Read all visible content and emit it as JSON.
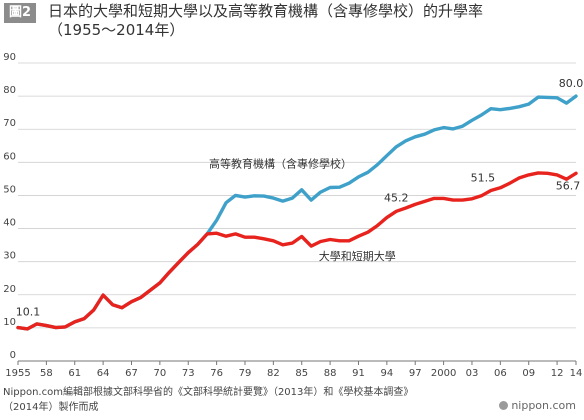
{
  "header": {
    "figure_label": "圖2",
    "title_line1": "日本的大學和短期大學以及高等教育機構（含專修學校）的升學率",
    "title_line2": "（1955～2014年）"
  },
  "footer": {
    "source_line1": "Nippon.com編輯部根據文部科學省的《文部科學統計要覽》（2013年）和《學校基本調查》",
    "source_line2": "（2014年）製作而成",
    "brand": "nippon.com",
    "brand_icon": "nippon-logo-icon"
  },
  "chart_data": {
    "type": "line",
    "title": "日本的大學和短期大學以及高等教育機構（含專修學校）的升學率（1955～2014年）",
    "ylim": [
      0,
      90
    ],
    "yticks": [
      0,
      10,
      20,
      30,
      40,
      50,
      60,
      70,
      80,
      90
    ],
    "xlim": [
      1955,
      2014
    ],
    "xticks": [
      {
        "value": 1955,
        "label": "1955"
      },
      {
        "value": 1958,
        "label": "58"
      },
      {
        "value": 1961,
        "label": "61"
      },
      {
        "value": 1964,
        "label": "64"
      },
      {
        "value": 1967,
        "label": "67"
      },
      {
        "value": 1970,
        "label": "70"
      },
      {
        "value": 1973,
        "label": "73"
      },
      {
        "value": 1976,
        "label": "76"
      },
      {
        "value": 1979,
        "label": "79"
      },
      {
        "value": 1982,
        "label": "82"
      },
      {
        "value": 1985,
        "label": "85"
      },
      {
        "value": 1988,
        "label": "88"
      },
      {
        "value": 1991,
        "label": "91"
      },
      {
        "value": 1994,
        "label": "94"
      },
      {
        "value": 1997,
        "label": "97"
      },
      {
        "value": 2000,
        "label": "2000"
      },
      {
        "value": 2003,
        "label": "03"
      },
      {
        "value": 2006,
        "label": "06"
      },
      {
        "value": 2009,
        "label": "09"
      },
      {
        "value": 2012,
        "label": "12"
      },
      {
        "value": 2014,
        "label": "14"
      }
    ],
    "grid": true,
    "series": [
      {
        "name": "高等教育機構（含專修學校）",
        "color": "#3fa1c9",
        "x": [
          1955,
          1956,
          1957,
          1958,
          1959,
          1960,
          1961,
          1962,
          1963,
          1964,
          1965,
          1966,
          1967,
          1968,
          1969,
          1970,
          1971,
          1972,
          1973,
          1974,
          1975,
          1976,
          1977,
          1978,
          1979,
          1980,
          1981,
          1982,
          1983,
          1984,
          1985,
          1986,
          1987,
          1988,
          1989,
          1990,
          1991,
          1992,
          1993,
          1994,
          1995,
          1996,
          1997,
          1998,
          1999,
          2000,
          2001,
          2002,
          2003,
          2004,
          2005,
          2006,
          2007,
          2008,
          2009,
          2010,
          2011,
          2012,
          2013,
          2014
        ],
        "values": [
          10.1,
          9.7,
          11.2,
          10.7,
          10.1,
          10.3,
          11.8,
          12.8,
          15.4,
          19.9,
          17.0,
          16.1,
          17.9,
          19.2,
          21.4,
          23.6,
          26.8,
          29.8,
          32.7,
          35.2,
          38.4,
          42.5,
          47.8,
          50.0,
          49.5,
          49.9,
          49.8,
          49.2,
          48.3,
          49.2,
          51.7,
          48.6,
          51.0,
          52.4,
          52.5,
          53.7,
          55.6,
          57.0,
          59.3,
          62.0,
          64.7,
          66.5,
          67.7,
          68.5,
          69.8,
          70.5,
          70.1,
          70.9,
          72.7,
          74.3,
          76.2,
          75.9,
          76.3,
          76.8,
          77.6,
          79.7,
          79.6,
          79.5,
          77.9,
          80.0
        ]
      },
      {
        "name": "大學和短期大學",
        "color": "#e8231d",
        "x": [
          1955,
          1956,
          1957,
          1958,
          1959,
          1960,
          1961,
          1962,
          1963,
          1964,
          1965,
          1966,
          1967,
          1968,
          1969,
          1970,
          1971,
          1972,
          1973,
          1974,
          1975,
          1976,
          1977,
          1978,
          1979,
          1980,
          1981,
          1982,
          1983,
          1984,
          1985,
          1986,
          1987,
          1988,
          1989,
          1990,
          1991,
          1992,
          1993,
          1994,
          1995,
          1996,
          1997,
          1998,
          1999,
          2000,
          2001,
          2002,
          2003,
          2004,
          2005,
          2006,
          2007,
          2008,
          2009,
          2010,
          2011,
          2012,
          2013,
          2014
        ],
        "values": [
          10.1,
          9.7,
          11.2,
          10.7,
          10.1,
          10.3,
          11.8,
          12.8,
          15.4,
          19.9,
          17.0,
          16.1,
          17.9,
          19.2,
          21.4,
          23.6,
          26.8,
          29.8,
          32.7,
          35.2,
          38.4,
          38.6,
          37.7,
          38.4,
          37.4,
          37.4,
          36.9,
          36.3,
          35.1,
          35.6,
          37.6,
          34.7,
          36.1,
          36.7,
          36.3,
          36.3,
          37.7,
          38.9,
          40.9,
          43.3,
          45.2,
          46.2,
          47.3,
          48.2,
          49.1,
          49.1,
          48.6,
          48.6,
          49.0,
          49.9,
          51.5,
          52.3,
          53.7,
          55.3,
          56.2,
          56.8,
          56.7,
          56.2,
          54.9,
          56.7
        ]
      }
    ],
    "annotations": [
      {
        "text": "10.1",
        "x": 1955,
        "y": 10.1,
        "name": "label-1955"
      },
      {
        "text": "45.2",
        "x": 1995,
        "y": 45.2,
        "name": "label-1995"
      },
      {
        "text": "51.5",
        "x": 2005,
        "y": 51.5,
        "name": "label-2005"
      },
      {
        "text": "80.0",
        "x": 2014,
        "y": 80.0,
        "name": "label-2014-higher"
      },
      {
        "text": "56.7",
        "x": 2014,
        "y": 56.7,
        "name": "label-2014-univ"
      }
    ],
    "series_labels": [
      {
        "text": "高等教育機構（含專修學校）",
        "series": 0
      },
      {
        "text": "大學和短期大學",
        "series": 1
      }
    ]
  }
}
